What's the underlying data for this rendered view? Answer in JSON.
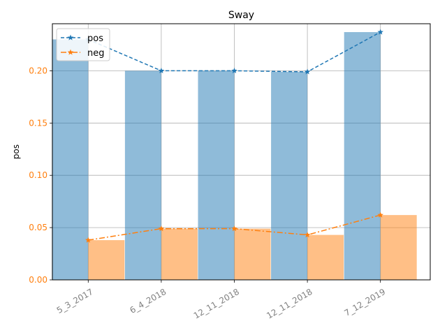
{
  "chart_data": {
    "type": "bar",
    "title": "Sway",
    "xlabel": "",
    "ylabel": "pos",
    "categories": [
      "5_3_2017",
      "6_4_2018",
      "12_11_2018",
      "12_11_2018",
      "7_12_2019"
    ],
    "ylim": [
      0,
      0.245
    ],
    "yticks": [
      "0.00",
      "0.05",
      "0.10",
      "0.15",
      "0.20"
    ],
    "grid": true,
    "legend_position": "top-left",
    "series": [
      {
        "name": "pos",
        "kind": "bar+line",
        "values": [
          0.23,
          0.2,
          0.2,
          0.199,
          0.237
        ],
        "color": "#1f77b4",
        "line_style": "dashed",
        "marker": "star"
      },
      {
        "name": "neg",
        "kind": "bar+line",
        "values": [
          0.038,
          0.049,
          0.049,
          0.043,
          0.062
        ],
        "color": "#ff7f0e",
        "line_style": "dashdot",
        "marker": "star"
      }
    ],
    "tick_label_colors": {
      "y": "#ff7f0e",
      "x": "#808080"
    }
  }
}
